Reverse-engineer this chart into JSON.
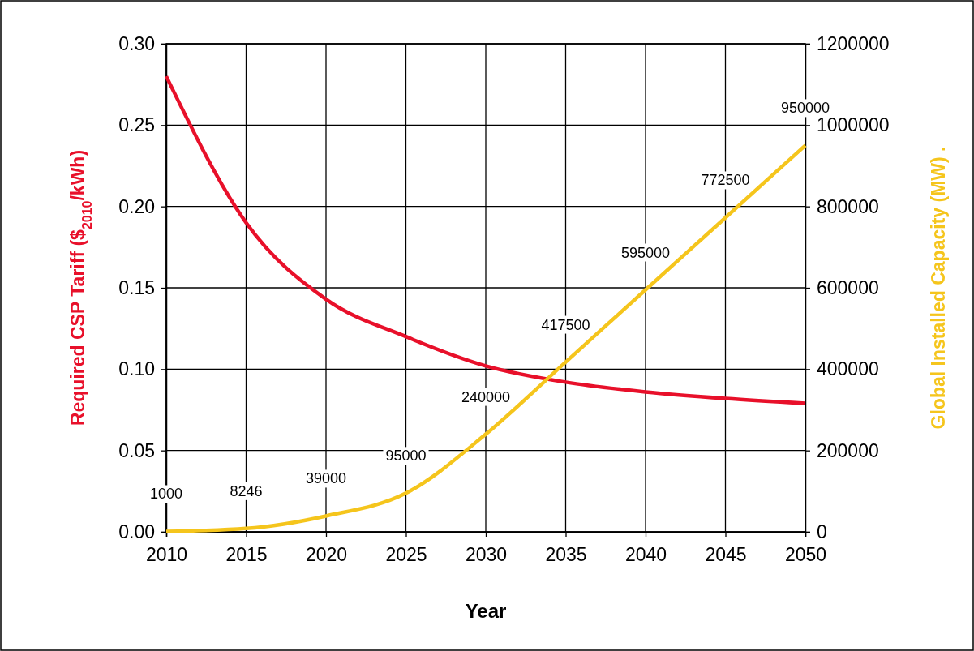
{
  "chart_data": {
    "type": "line",
    "xlabel": "Year",
    "ylabel": "Required CSP Tariff ($$_{2010}$/kWh)",
    "y2label": "Global Installed Capacity (MW) .",
    "x": [
      2010,
      2015,
      2020,
      2025,
      2030,
      2035,
      2040,
      2045,
      2050
    ],
    "xlim": [
      2010,
      2050
    ],
    "xticks": [
      2010,
      2015,
      2020,
      2025,
      2030,
      2035,
      2040,
      2045,
      2050
    ],
    "ylim": [
      0,
      0.3
    ],
    "yticks": [
      {
        "value": 0,
        "label": "0.00"
      },
      {
        "value": 0.05,
        "label": "0.05"
      },
      {
        "value": 0.1,
        "label": "0.10"
      },
      {
        "value": 0.15,
        "label": "0.15"
      },
      {
        "value": 0.2,
        "label": "0.20"
      },
      {
        "value": 0.25,
        "label": "0.25"
      },
      {
        "value": 0.3,
        "label": "0.30"
      }
    ],
    "y2lim": [
      0,
      1200000
    ],
    "y2ticks": [
      0,
      200000,
      400000,
      600000,
      800000,
      1000000,
      1200000
    ],
    "grid": true,
    "marker": "none",
    "line_style": "solid",
    "series": [
      {
        "color": "#e8102a",
        "values": [
          0.28,
          0.19,
          0.143,
          0.12,
          0.102,
          0.092,
          0.086,
          0.082,
          0.079
        ]
      },
      {
        "color": "#f5c51c",
        "axis": "y2",
        "data_labels": true,
        "values": [
          1000,
          8246,
          39000,
          95000,
          240000,
          417500,
          595000,
          772500,
          950000
        ]
      }
    ]
  }
}
